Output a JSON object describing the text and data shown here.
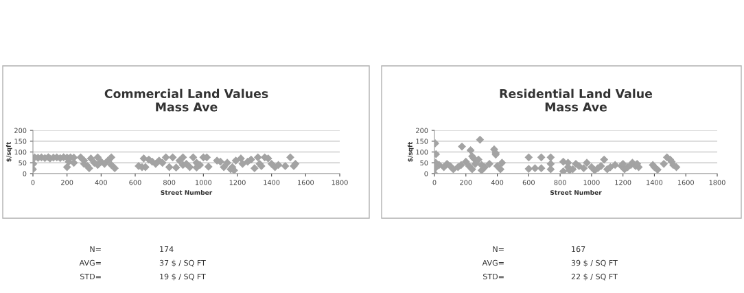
{
  "chart_data": [
    {
      "type": "scatter",
      "title": "Commercial Land Values\nMass Ave",
      "xlabel": "Street Number",
      "ylabel": "$/sqft",
      "marker": "diamond",
      "grid": "y",
      "legend": false,
      "xlim": [
        0,
        1800
      ],
      "xticks": [
        0,
        200,
        400,
        600,
        800,
        1000,
        1200,
        1400,
        1600,
        1800
      ],
      "ylim": [
        0,
        200
      ],
      "yticks": [
        0,
        50,
        100,
        150,
        200
      ],
      "series": [
        {
          "color": "#a3a3a3",
          "x": [
            0,
            2,
            10,
            30,
            50,
            70,
            90,
            100,
            120,
            140,
            160,
            180,
            200,
            220,
            240,
            210,
            200,
            240,
            280,
            300,
            320,
            330,
            340,
            360,
            380,
            400,
            420,
            440,
            460,
            460,
            480,
            380,
            300,
            620,
            640,
            660,
            650,
            680,
            700,
            720,
            740,
            760,
            780,
            800,
            820,
            840,
            860,
            880,
            880,
            900,
            920,
            940,
            960,
            960,
            980,
            1000,
            1020,
            1030,
            1080,
            1100,
            1120,
            1140,
            1160,
            1180,
            1170,
            1190,
            1220,
            1230,
            1260,
            1280,
            1300,
            1320,
            1330,
            1340,
            1360,
            1380,
            1400,
            1420,
            1440,
            1480,
            1510,
            1530,
            1540
          ],
          "values": [
            20,
            45,
            75,
            73,
            75,
            72,
            76,
            70,
            74,
            75,
            72,
            76,
            74,
            75,
            74,
            55,
            30,
            50,
            75,
            60,
            35,
            25,
            70,
            50,
            75,
            55,
            45,
            60,
            75,
            40,
            25,
            40,
            45,
            35,
            30,
            30,
            70,
            65,
            55,
            45,
            60,
            50,
            75,
            30,
            75,
            28,
            60,
            75,
            40,
            45,
            30,
            75,
            50,
            28,
            40,
            75,
            75,
            32,
            60,
            55,
            30,
            50,
            20,
            15,
            30,
            60,
            70,
            45,
            55,
            65,
            25,
            75,
            45,
            35,
            75,
            70,
            45,
            30,
            40,
            35,
            75,
            35,
            45
          ]
        }
      ],
      "annotations": [
        "N=",
        "174",
        "AVG=",
        "37 $ / SQ FT",
        "STD=",
        "19 $ / SQ FT"
      ]
    },
    {
      "type": "scatter",
      "title": "Residential Land Value\nMass Ave",
      "xlabel": "Street Number",
      "ylabel": "$/sqft",
      "marker": "diamond",
      "grid": "y",
      "legend": false,
      "xlim": [
        0,
        1800
      ],
      "xticks": [
        0,
        200,
        400,
        600,
        800,
        1000,
        1200,
        1400,
        1600,
        1800
      ],
      "ylim": [
        0,
        200
      ],
      "yticks": [
        0,
        50,
        100,
        150,
        200
      ],
      "series": [
        {
          "color": "#a3a3a3",
          "x": [
            0,
            4,
            8,
            10,
            5,
            30,
            60,
            80,
            100,
            120,
            150,
            170,
            175,
            200,
            220,
            230,
            240,
            250,
            260,
            240,
            280,
            290,
            300,
            300,
            320,
            350,
            380,
            390,
            390,
            400,
            420,
            430,
            600,
            600,
            640,
            680,
            680,
            740,
            740,
            740,
            820,
            820,
            850,
            850,
            860,
            880,
            900,
            920,
            950,
            970,
            1000,
            1020,
            1040,
            1080,
            1060,
            1100,
            1120,
            1150,
            1190,
            1200,
            1210,
            1230,
            1250,
            1260,
            1280,
            1300,
            1290,
            1390,
            1400,
            1420,
            1460,
            1480,
            1500,
            1510,
            1520,
            1540
          ],
          "values": [
            0,
            25,
            50,
            90,
            140,
            40,
            30,
            45,
            35,
            20,
            30,
            40,
            125,
            55,
            35,
            108,
            80,
            70,
            45,
            20,
            65,
            157,
            40,
            15,
            30,
            45,
            112,
            95,
            88,
            35,
            20,
            50,
            75,
            22,
            25,
            75,
            25,
            75,
            45,
            20,
            55,
            10,
            50,
            30,
            15,
            20,
            45,
            35,
            25,
            50,
            30,
            15,
            25,
            65,
            35,
            20,
            30,
            40,
            35,
            45,
            20,
            30,
            40,
            50,
            35,
            30,
            45,
            40,
            30,
            18,
            45,
            75,
            65,
            55,
            40,
            30
          ]
        }
      ],
      "annotations": [
        "N=",
        "167",
        "AVG=",
        "39 $ / SQ FT",
        "STD=",
        "22 $ / SQ FT"
      ]
    }
  ]
}
